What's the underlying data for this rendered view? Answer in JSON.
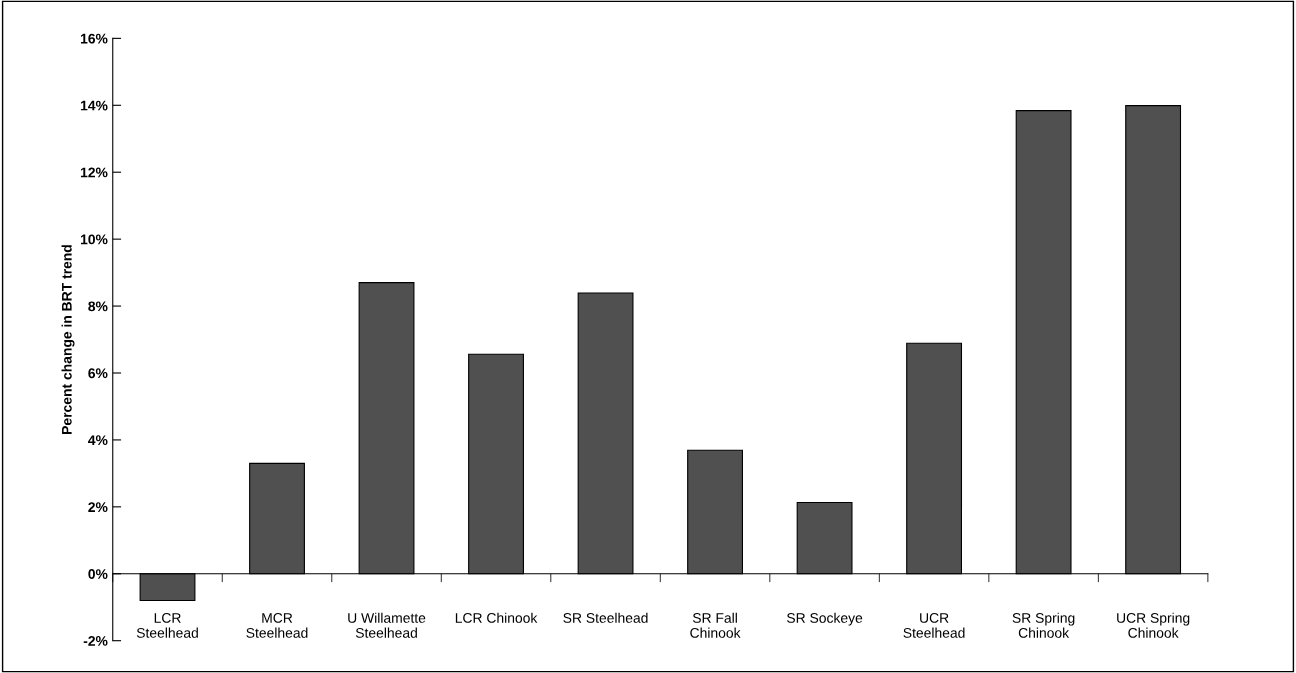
{
  "chart_data": {
    "type": "bar",
    "ylabel": "Percent change in BRT trend",
    "categories": [
      "LCR\nSteelhead",
      "MCR\nSteelhead",
      "U Willamette\nSteelhead",
      "LCR Chinook",
      "SR Steelhead",
      "SR Fall\nChinook",
      "SR Sockeye",
      "UCR\nSteelhead",
      "SR Spring\nChinook",
      "UCR Spring\nChinook"
    ],
    "values": [
      -0.8,
      3.3,
      8.7,
      6.56,
      8.39,
      3.69,
      2.13,
      6.89,
      13.84,
      13.99
    ],
    "color": "#505050",
    "ylim": [
      -2,
      16
    ],
    "yticks": [
      {
        "value": -2,
        "label": "-2%"
      },
      {
        "value": 0,
        "label": "0%"
      },
      {
        "value": 2,
        "label": "2%"
      },
      {
        "value": 4,
        "label": "4%"
      },
      {
        "value": 6,
        "label": "6%"
      },
      {
        "value": 8,
        "label": "8%"
      },
      {
        "value": 10,
        "label": "10%"
      },
      {
        "value": 12,
        "label": "12%"
      },
      {
        "value": 14,
        "label": "14%"
      },
      {
        "value": 16,
        "label": "16%"
      }
    ],
    "legend": false
  }
}
